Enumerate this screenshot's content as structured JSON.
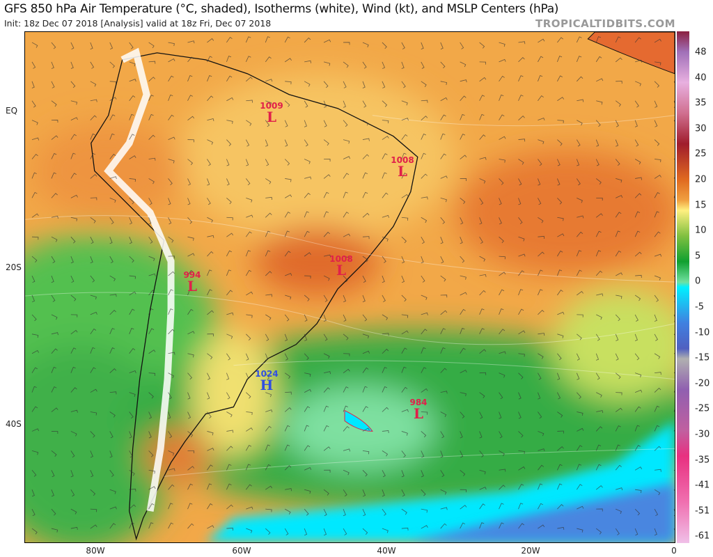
{
  "header": {
    "title": "GFS 850 hPa Air Temperature (°C, shaded), Isotherms (white), Wind (kt), and MSLP Centers (hPa)",
    "subtitle": "Init: 18z Dec 07 2018   [Analysis]   valid at 18z Fri, Dec 07 2018",
    "brand": "TROPICALTIDBITS.COM"
  },
  "axes": {
    "longitude_labels": [
      "80W",
      "60W",
      "40W",
      "20W",
      "0"
    ],
    "latitude_labels": [
      "EQ",
      "20S",
      "40S"
    ]
  },
  "colorbar": {
    "labels": [
      "48",
      "40",
      "35",
      "30",
      "25",
      "20",
      "15",
      "10",
      "5",
      "0",
      "-5",
      "-10",
      "-15",
      "-20",
      "-25",
      "-30",
      "-35",
      "-41",
      "-51",
      "-61"
    ],
    "colors": [
      "#8b2040",
      "#b080c0",
      "#e8b0e0",
      "#d07090",
      "#a01c2c",
      "#e06a20",
      "#f0a040",
      "#fff080",
      "#80c040",
      "#10a030",
      "#70e0a0",
      "#00f0ff",
      "#4080e0",
      "#5060c0",
      "#b0b0b0",
      "#9060b0",
      "#c060a0",
      "#e83080",
      "#f070b0",
      "#f0c0e8"
    ]
  },
  "pressure_centers": [
    {
      "value": "1009",
      "type": "L",
      "color": "#e0204a"
    },
    {
      "value": "1008",
      "type": "L",
      "color": "#e0204a"
    },
    {
      "value": "1008",
      "type": "L",
      "color": "#e0204a"
    },
    {
      "value": "994",
      "type": "L",
      "color": "#e0204a"
    },
    {
      "value": "1024",
      "type": "H",
      "color": "#3050e0"
    },
    {
      "value": "984",
      "type": "L",
      "color": "#e0204a"
    }
  ]
}
